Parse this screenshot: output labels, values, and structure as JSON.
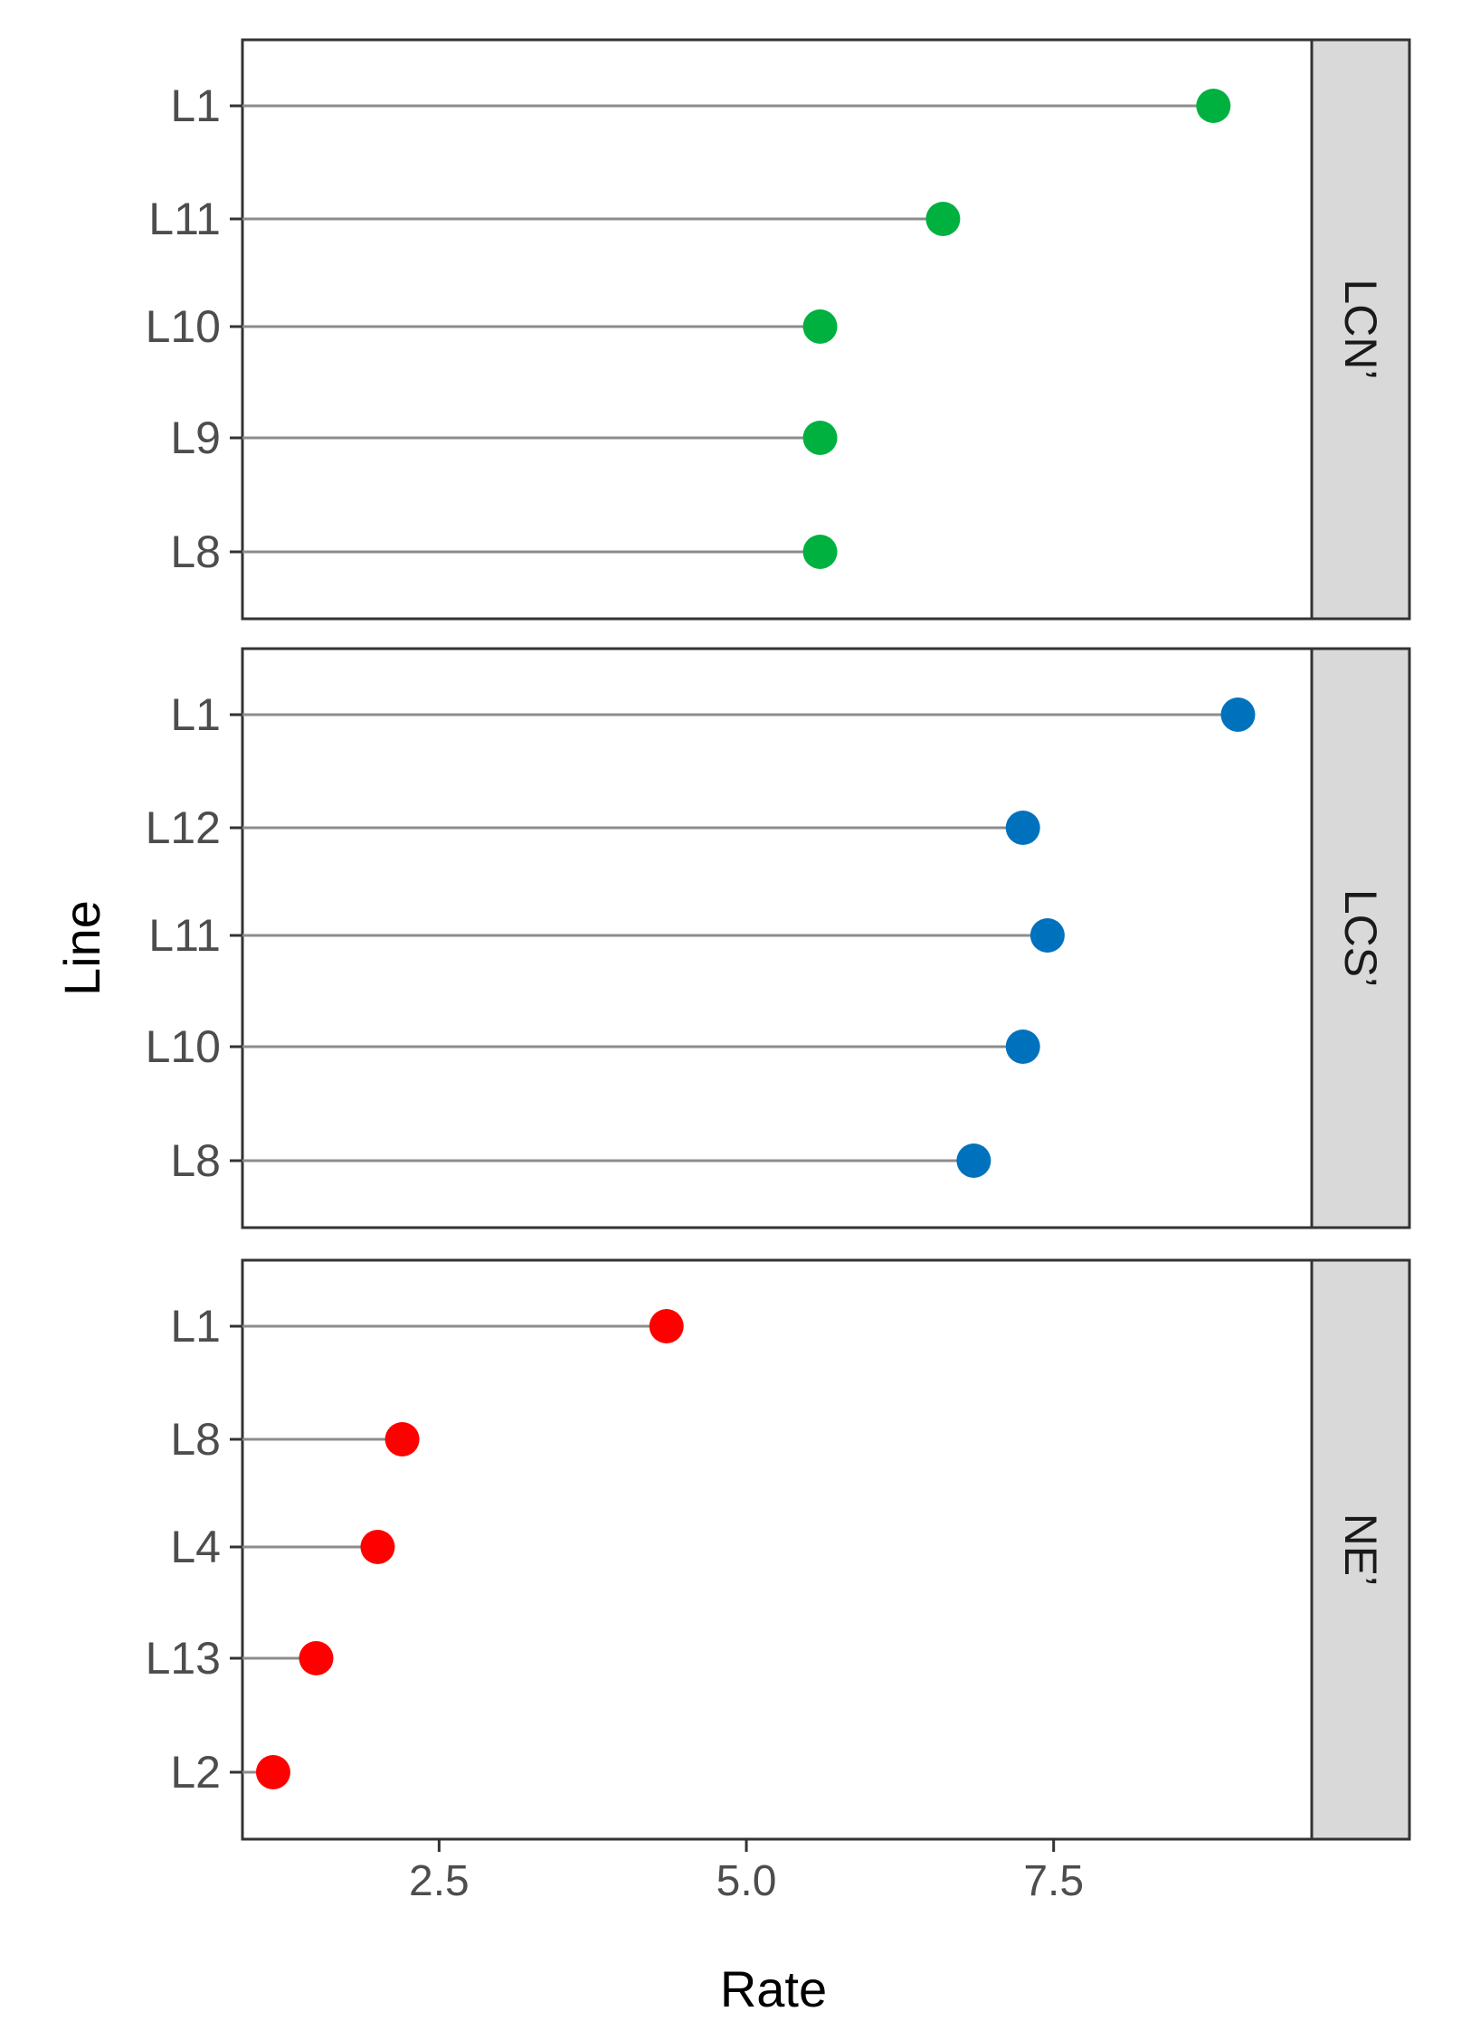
{
  "chart_data": {
    "type": "lollipop",
    "xlabel": "Rate",
    "ylabel": "Line",
    "xlim": [
      0.9,
      9.6
    ],
    "x_ticks": [
      "2.5",
      "5.0",
      "7.5"
    ],
    "x_tick_values": [
      2.5,
      5.0,
      7.5
    ],
    "grid": false,
    "panels": [
      {
        "facet": "LCN’",
        "color": "#00B140",
        "points": [
          {
            "line": "L1",
            "rate": 8.8
          },
          {
            "line": "L11",
            "rate": 6.6
          },
          {
            "line": "L10",
            "rate": 5.6
          },
          {
            "line": "L9",
            "rate": 5.6
          },
          {
            "line": "L8",
            "rate": 5.6
          }
        ]
      },
      {
        "facet": "LCS’",
        "color": "#0072BD",
        "points": [
          {
            "line": "L1",
            "rate": 9.0
          },
          {
            "line": "L12",
            "rate": 7.25
          },
          {
            "line": "L11",
            "rate": 7.45
          },
          {
            "line": "L10",
            "rate": 7.25
          },
          {
            "line": "L8",
            "rate": 6.85
          }
        ]
      },
      {
        "facet": "NE’",
        "color": "#FF0000",
        "points": [
          {
            "line": "L1",
            "rate": 4.35
          },
          {
            "line": "L8",
            "rate": 2.2
          },
          {
            "line": "L4",
            "rate": 2.0
          },
          {
            "line": "L13",
            "rate": 1.5
          },
          {
            "line": "L2",
            "rate": 1.15
          }
        ]
      }
    ]
  }
}
